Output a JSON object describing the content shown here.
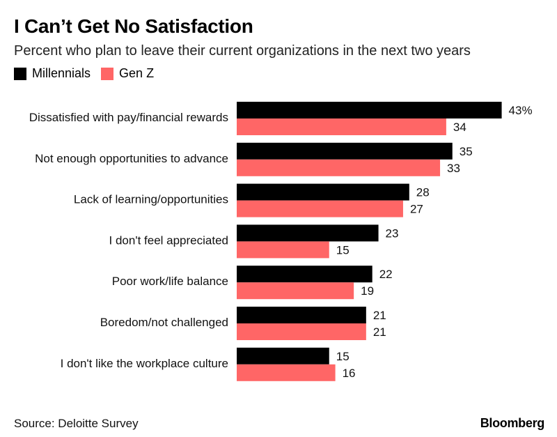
{
  "header": {
    "title": "I Can’t Get No Satisfaction",
    "subtitle": "Percent who plan to leave their current organizations in the next two years"
  },
  "colors": {
    "millennials": "#000000",
    "genz": "#ff6666"
  },
  "footer": {
    "source": "Source: Deloitte Survey",
    "brand": "Bloomberg"
  },
  "chart_data": {
    "type": "bar",
    "orientation": "horizontal",
    "categories": [
      "Dissatisfied with pay/financial rewards",
      "Not enough opportunities to advance",
      "Lack of learning/opportunities",
      "I don't feel appreciated",
      "Poor work/life balance",
      "Boredom/not challenged",
      "I don't like the workplace culture"
    ],
    "series": [
      {
        "name": "Millennials",
        "values": [
          43,
          35,
          28,
          23,
          22,
          21,
          15
        ],
        "labels": [
          "43%",
          "35",
          "28",
          "23",
          "22",
          "21",
          "15"
        ]
      },
      {
        "name": "Gen Z",
        "values": [
          34,
          33,
          27,
          15,
          19,
          21,
          16
        ],
        "labels": [
          "34",
          "33",
          "27",
          "15",
          "19",
          "21",
          "16"
        ]
      }
    ],
    "legend": "top-left",
    "grid": false
  }
}
